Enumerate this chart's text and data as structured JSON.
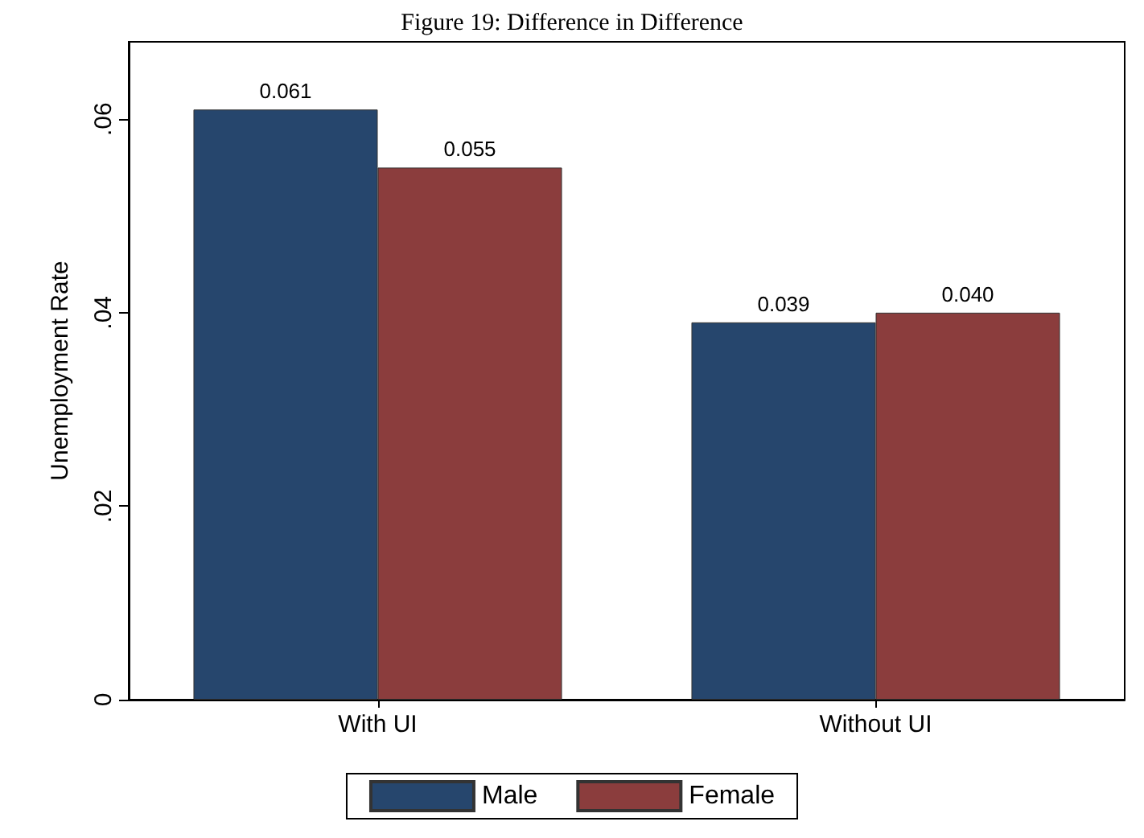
{
  "chart_data": {
    "type": "bar",
    "title": "Figure 19: Difference in Difference",
    "ylabel": "Unemployment Rate",
    "categories": [
      "With UI",
      "Without UI"
    ],
    "series": [
      {
        "name": "Male",
        "color": "#26466d",
        "values": [
          0.061,
          0.039
        ],
        "value_labels": [
          "0.061",
          "0.039"
        ]
      },
      {
        "name": "Female",
        "color": "#8b3d3d",
        "values": [
          0.055,
          0.04
        ],
        "value_labels": [
          "0.055",
          "0.040"
        ]
      }
    ],
    "ylim": [
      0,
      0.068
    ],
    "yticks": [
      0,
      {
        "value": 0.02,
        "label": ".02"
      },
      {
        "value": 0.04,
        "label": ".04"
      },
      {
        "value": 0.06,
        "label": ".06"
      }
    ],
    "grid": false,
    "legend": "bottom"
  }
}
